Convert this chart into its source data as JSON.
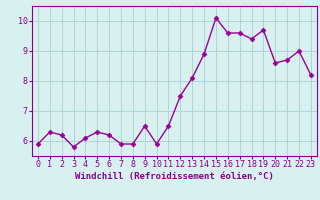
{
  "x": [
    0,
    1,
    2,
    3,
    4,
    5,
    6,
    7,
    8,
    9,
    10,
    11,
    12,
    13,
    14,
    15,
    16,
    17,
    18,
    19,
    20,
    21,
    22,
    23
  ],
  "y": [
    5.9,
    6.3,
    6.2,
    5.8,
    6.1,
    6.3,
    6.2,
    5.9,
    5.9,
    6.5,
    5.9,
    6.5,
    7.5,
    8.1,
    8.9,
    10.1,
    9.6,
    9.6,
    9.4,
    9.7,
    8.6,
    8.7,
    9.0,
    8.2
  ],
  "line_color": "#990099",
  "marker": "D",
  "marker_size": 2.5,
  "line_width": 1.0,
  "xlabel": "Windchill (Refroidissement éolien,°C)",
  "xlabel_fontsize": 6.5,
  "tick_fontsize": 6.0,
  "ylim": [
    5.5,
    10.5
  ],
  "yticks": [
    6,
    7,
    8,
    9,
    10
  ],
  "background_color": "#d8f0f0",
  "grid_color": "#b0d4d4",
  "axis_label_color": "#880088",
  "tick_color": "#880088",
  "spine_color": "#880088"
}
